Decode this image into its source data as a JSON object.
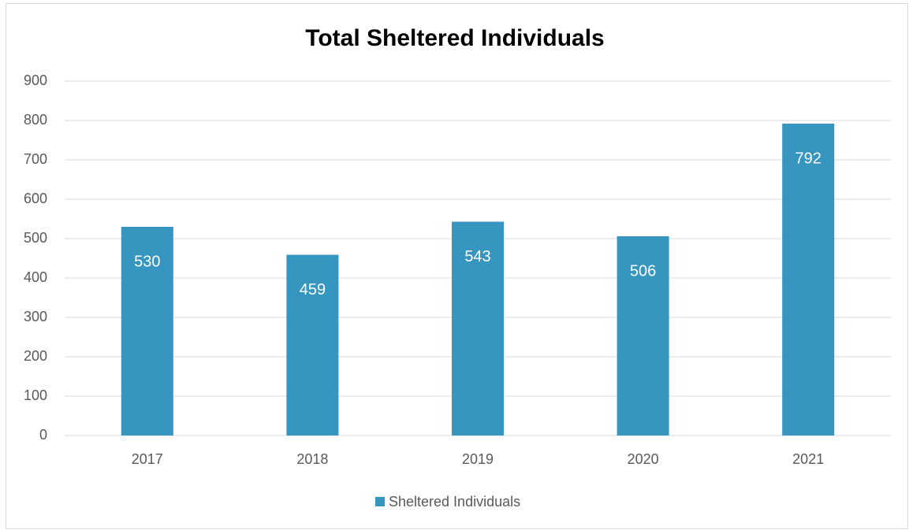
{
  "chart_data": {
    "type": "bar",
    "title": "Total Sheltered Individuals",
    "categories": [
      "2017",
      "2018",
      "2019",
      "2020",
      "2021"
    ],
    "series": [
      {
        "name": "Sheltered Individuals",
        "color": "#3796bf",
        "values": [
          530,
          459,
          543,
          506,
          792
        ]
      }
    ],
    "ylim": [
      0,
      900
    ],
    "yticks": [
      0,
      100,
      200,
      300,
      400,
      500,
      600,
      700,
      800,
      900
    ],
    "grid": true,
    "legend": "bottom",
    "data_labels": true
  }
}
